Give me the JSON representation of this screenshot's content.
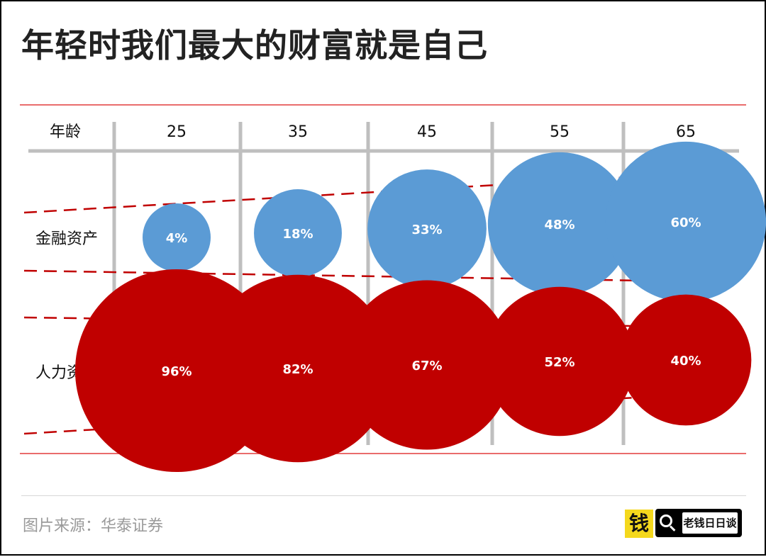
{
  "title": "年轻时我们最大的财富就是自己",
  "chart_data": {
    "type": "bubble",
    "title": "年轻时我们最大的财富就是自己",
    "x_header": "年龄",
    "categories": [
      "25",
      "35",
      "45",
      "55",
      "65"
    ],
    "series": [
      {
        "name": "金融资产",
        "values": [
          4,
          18,
          33,
          48,
          60
        ],
        "labels": [
          "4%",
          "18%",
          "33%",
          "48%",
          "60%"
        ],
        "color": "#5b9bd5"
      },
      {
        "name": "人力资本",
        "values": [
          96,
          82,
          67,
          52,
          40
        ],
        "labels": [
          "96%",
          "82%",
          "67%",
          "52%",
          "40%"
        ],
        "color": "#c00000"
      }
    ],
    "unit": "%",
    "grid_color": "#bfbfbf",
    "rule_color": "#e23b3b",
    "arrow_color": "#c00000"
  },
  "footer": {
    "source": "图片来源：华泰证券",
    "logo_glyph": "钱",
    "badge_label": "老钱日日谈"
  }
}
